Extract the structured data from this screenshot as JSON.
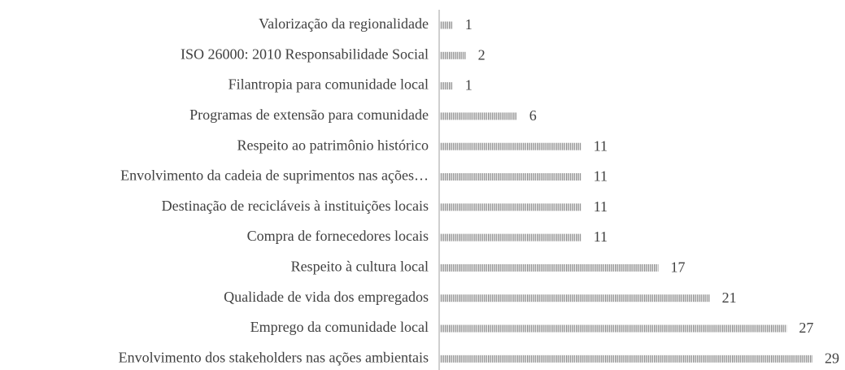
{
  "chart_data": {
    "type": "bar",
    "orientation": "horizontal",
    "categories": [
      "Valorização da regionalidade",
      "ISO 26000: 2010 Responsabilidade Social",
      "Filantropia para comunidade local",
      "Programas de extensão para comunidade",
      "Respeito ao patrimônio histórico",
      "Envolvimento da cadeia de suprimentos nas ações…",
      "Destinação de recicláveis à instituições locais",
      "Compra de fornecedores locais",
      "Respeito à cultura local",
      "Qualidade de vida dos empregados",
      "Emprego da comunidade local",
      "Envolvimento dos stakeholders nas ações ambientais"
    ],
    "values": [
      1,
      2,
      1,
      6,
      11,
      11,
      11,
      11,
      17,
      21,
      27,
      29
    ],
    "color": "#a6a6a6"
  }
}
